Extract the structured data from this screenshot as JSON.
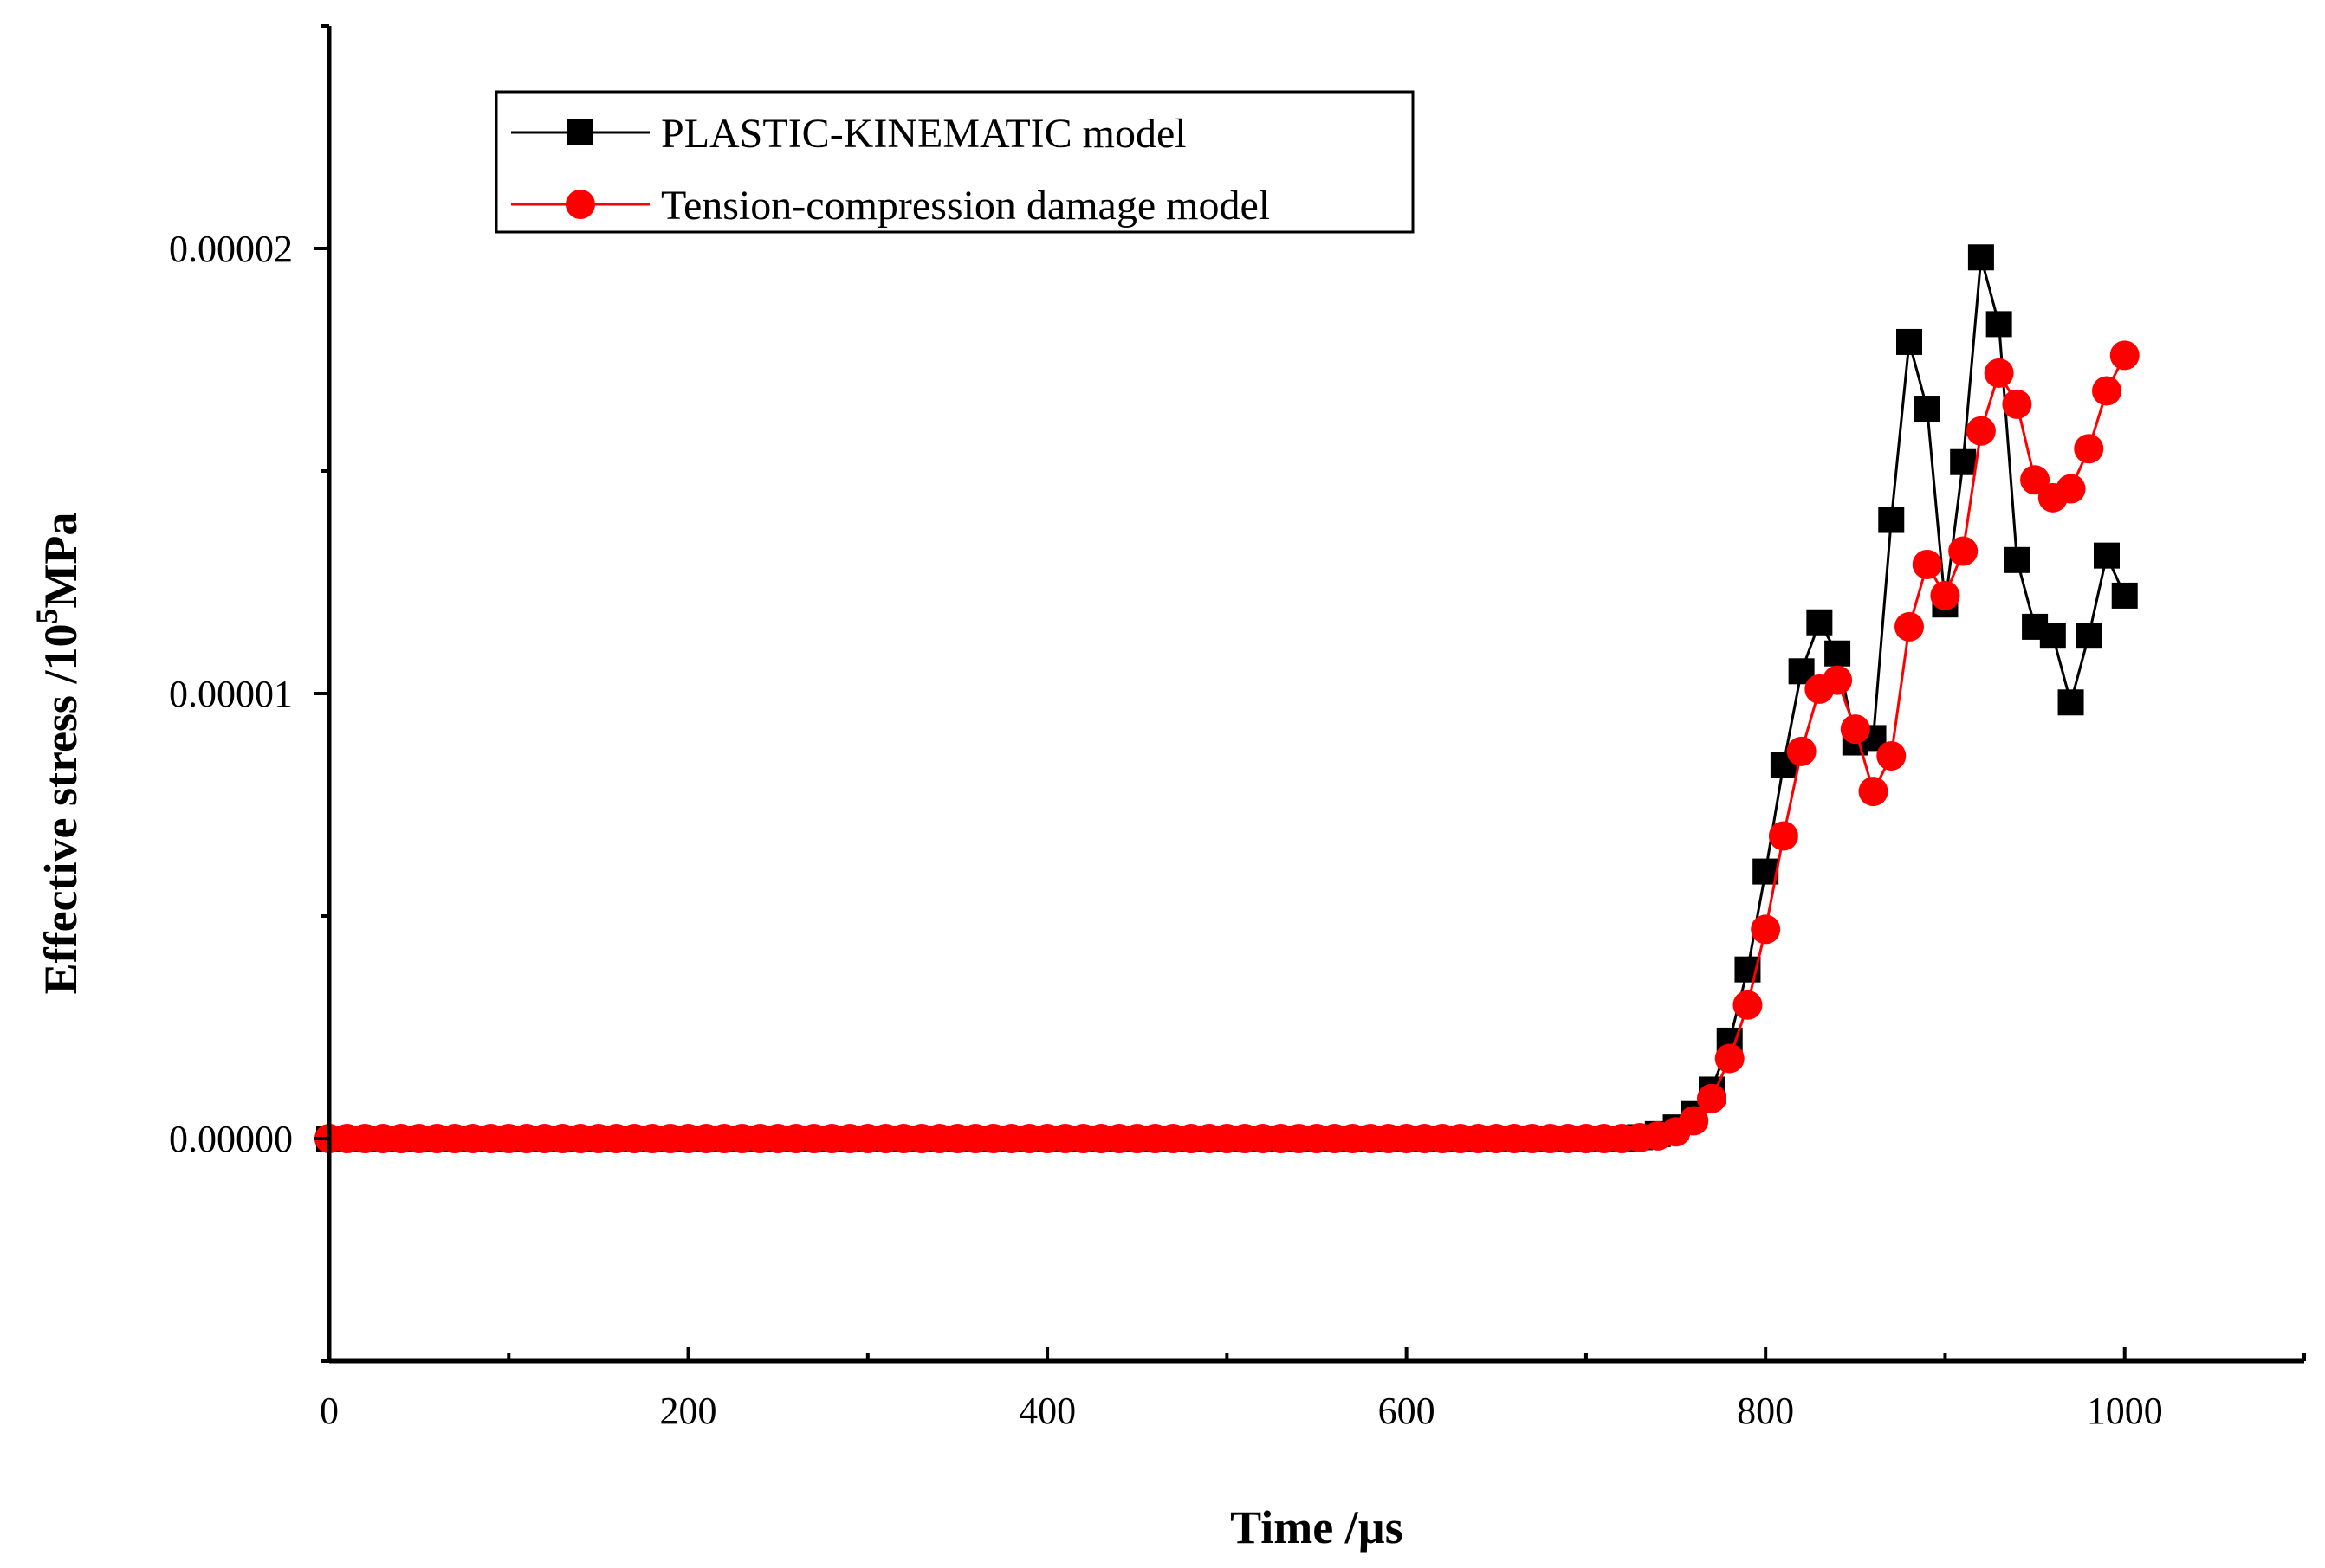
{
  "chart_data": {
    "type": "line",
    "title": "",
    "xlabel": "Time /µs",
    "ylabel_base": "Effective stress /10",
    "ylabel_sup": "5",
    "ylabel_unit": "MPa",
    "xlim": [
      0,
      1100
    ],
    "ylim": [
      -5e-06,
      2.5e-05
    ],
    "x_ticks": [
      0,
      200,
      400,
      600,
      800,
      1000
    ],
    "x_tick_labels": [
      "0",
      "200",
      "400",
      "600",
      "800",
      "1000"
    ],
    "y_ticks": [
      0,
      1e-05,
      2e-05
    ],
    "y_tick_labels": [
      "0.00000",
      "0.00001",
      "0.00002"
    ],
    "legend_position": "top-left",
    "series": [
      {
        "name": "PLASTIC-KINEMATIC model",
        "color": "#000000",
        "marker": "square",
        "x": [
          0,
          10,
          20,
          30,
          40,
          50,
          60,
          70,
          80,
          90,
          100,
          110,
          120,
          130,
          140,
          150,
          160,
          170,
          180,
          190,
          200,
          210,
          220,
          230,
          240,
          250,
          260,
          270,
          280,
          290,
          300,
          310,
          320,
          330,
          340,
          350,
          360,
          370,
          380,
          390,
          400,
          410,
          420,
          430,
          440,
          450,
          460,
          470,
          480,
          490,
          500,
          510,
          520,
          530,
          540,
          550,
          560,
          570,
          580,
          590,
          600,
          610,
          620,
          630,
          640,
          650,
          660,
          670,
          680,
          690,
          700,
          710,
          720,
          730,
          740,
          750,
          760,
          770,
          780,
          790,
          800,
          810,
          820,
          830,
          840,
          850,
          860,
          870,
          880,
          890,
          900,
          910,
          920,
          930,
          940,
          950,
          960,
          970,
          980,
          990,
          1000
        ],
        "values": [
          0,
          0,
          0,
          0,
          0,
          0,
          0,
          0,
          0,
          0,
          0,
          0,
          0,
          0,
          0,
          0,
          0,
          0,
          0,
          0,
          0,
          0,
          0,
          0,
          0,
          0,
          0,
          0,
          0,
          0,
          0,
          0,
          0,
          0,
          0,
          0,
          0,
          0,
          0,
          0,
          0,
          0,
          0,
          0,
          0,
          0,
          0,
          0,
          0,
          0,
          0,
          0,
          0,
          0,
          0,
          0,
          0,
          0,
          0,
          0,
          0,
          0,
          0,
          0,
          0,
          0,
          0,
          0,
          0,
          0,
          0,
          0,
          0,
          3e-08,
          1e-07,
          2.5e-07,
          5.5e-07,
          1.1e-06,
          2.2e-06,
          3.8e-06,
          6e-06,
          8.4e-06,
          1.05e-05,
          1.16e-05,
          1.09e-05,
          8.9e-06,
          9e-06,
          1.39e-05,
          1.79e-05,
          1.64e-05,
          1.2e-05,
          1.52e-05,
          1.98e-05,
          1.83e-05,
          1.3e-05,
          1.15e-05,
          1.13e-05,
          9.8e-06,
          1.13e-05,
          1.31e-05,
          1.22e-05
        ]
      },
      {
        "name": "Tension-compression damage model",
        "color": "#ff0000",
        "marker": "circle",
        "x": [
          0,
          10,
          20,
          30,
          40,
          50,
          60,
          70,
          80,
          90,
          100,
          110,
          120,
          130,
          140,
          150,
          160,
          170,
          180,
          190,
          200,
          210,
          220,
          230,
          240,
          250,
          260,
          270,
          280,
          290,
          300,
          310,
          320,
          330,
          340,
          350,
          360,
          370,
          380,
          390,
          400,
          410,
          420,
          430,
          440,
          450,
          460,
          470,
          480,
          490,
          500,
          510,
          520,
          530,
          540,
          550,
          560,
          570,
          580,
          590,
          600,
          610,
          620,
          630,
          640,
          650,
          660,
          670,
          680,
          690,
          700,
          710,
          720,
          730,
          740,
          750,
          760,
          770,
          780,
          790,
          800,
          810,
          820,
          830,
          840,
          850,
          860,
          870,
          880,
          890,
          900,
          910,
          920,
          930,
          940,
          950,
          960,
          970,
          980,
          990,
          1000
        ],
        "values": [
          0,
          0,
          0,
          0,
          0,
          0,
          0,
          0,
          0,
          0,
          0,
          0,
          0,
          0,
          0,
          0,
          0,
          0,
          0,
          0,
          0,
          0,
          0,
          0,
          0,
          0,
          0,
          0,
          0,
          0,
          0,
          0,
          0,
          0,
          0,
          0,
          0,
          0,
          0,
          0,
          0,
          0,
          0,
          0,
          0,
          0,
          0,
          0,
          0,
          0,
          0,
          0,
          0,
          0,
          0,
          0,
          0,
          0,
          0,
          0,
          0,
          0,
          0,
          0,
          0,
          0,
          0,
          0,
          0,
          0,
          0,
          0,
          0,
          2e-08,
          6e-08,
          1.5e-07,
          4e-07,
          9e-07,
          1.8e-06,
          3e-06,
          4.7e-06,
          6.8e-06,
          8.7e-06,
          1.01e-05,
          1.03e-05,
          9.2e-06,
          7.8e-06,
          8.6e-06,
          1.15e-05,
          1.29e-05,
          1.22e-05,
          1.32e-05,
          1.59e-05,
          1.72e-05,
          1.65e-05,
          1.48e-05,
          1.44e-05,
          1.46e-05,
          1.55e-05,
          1.68e-05,
          1.76e-05
        ]
      }
    ]
  }
}
